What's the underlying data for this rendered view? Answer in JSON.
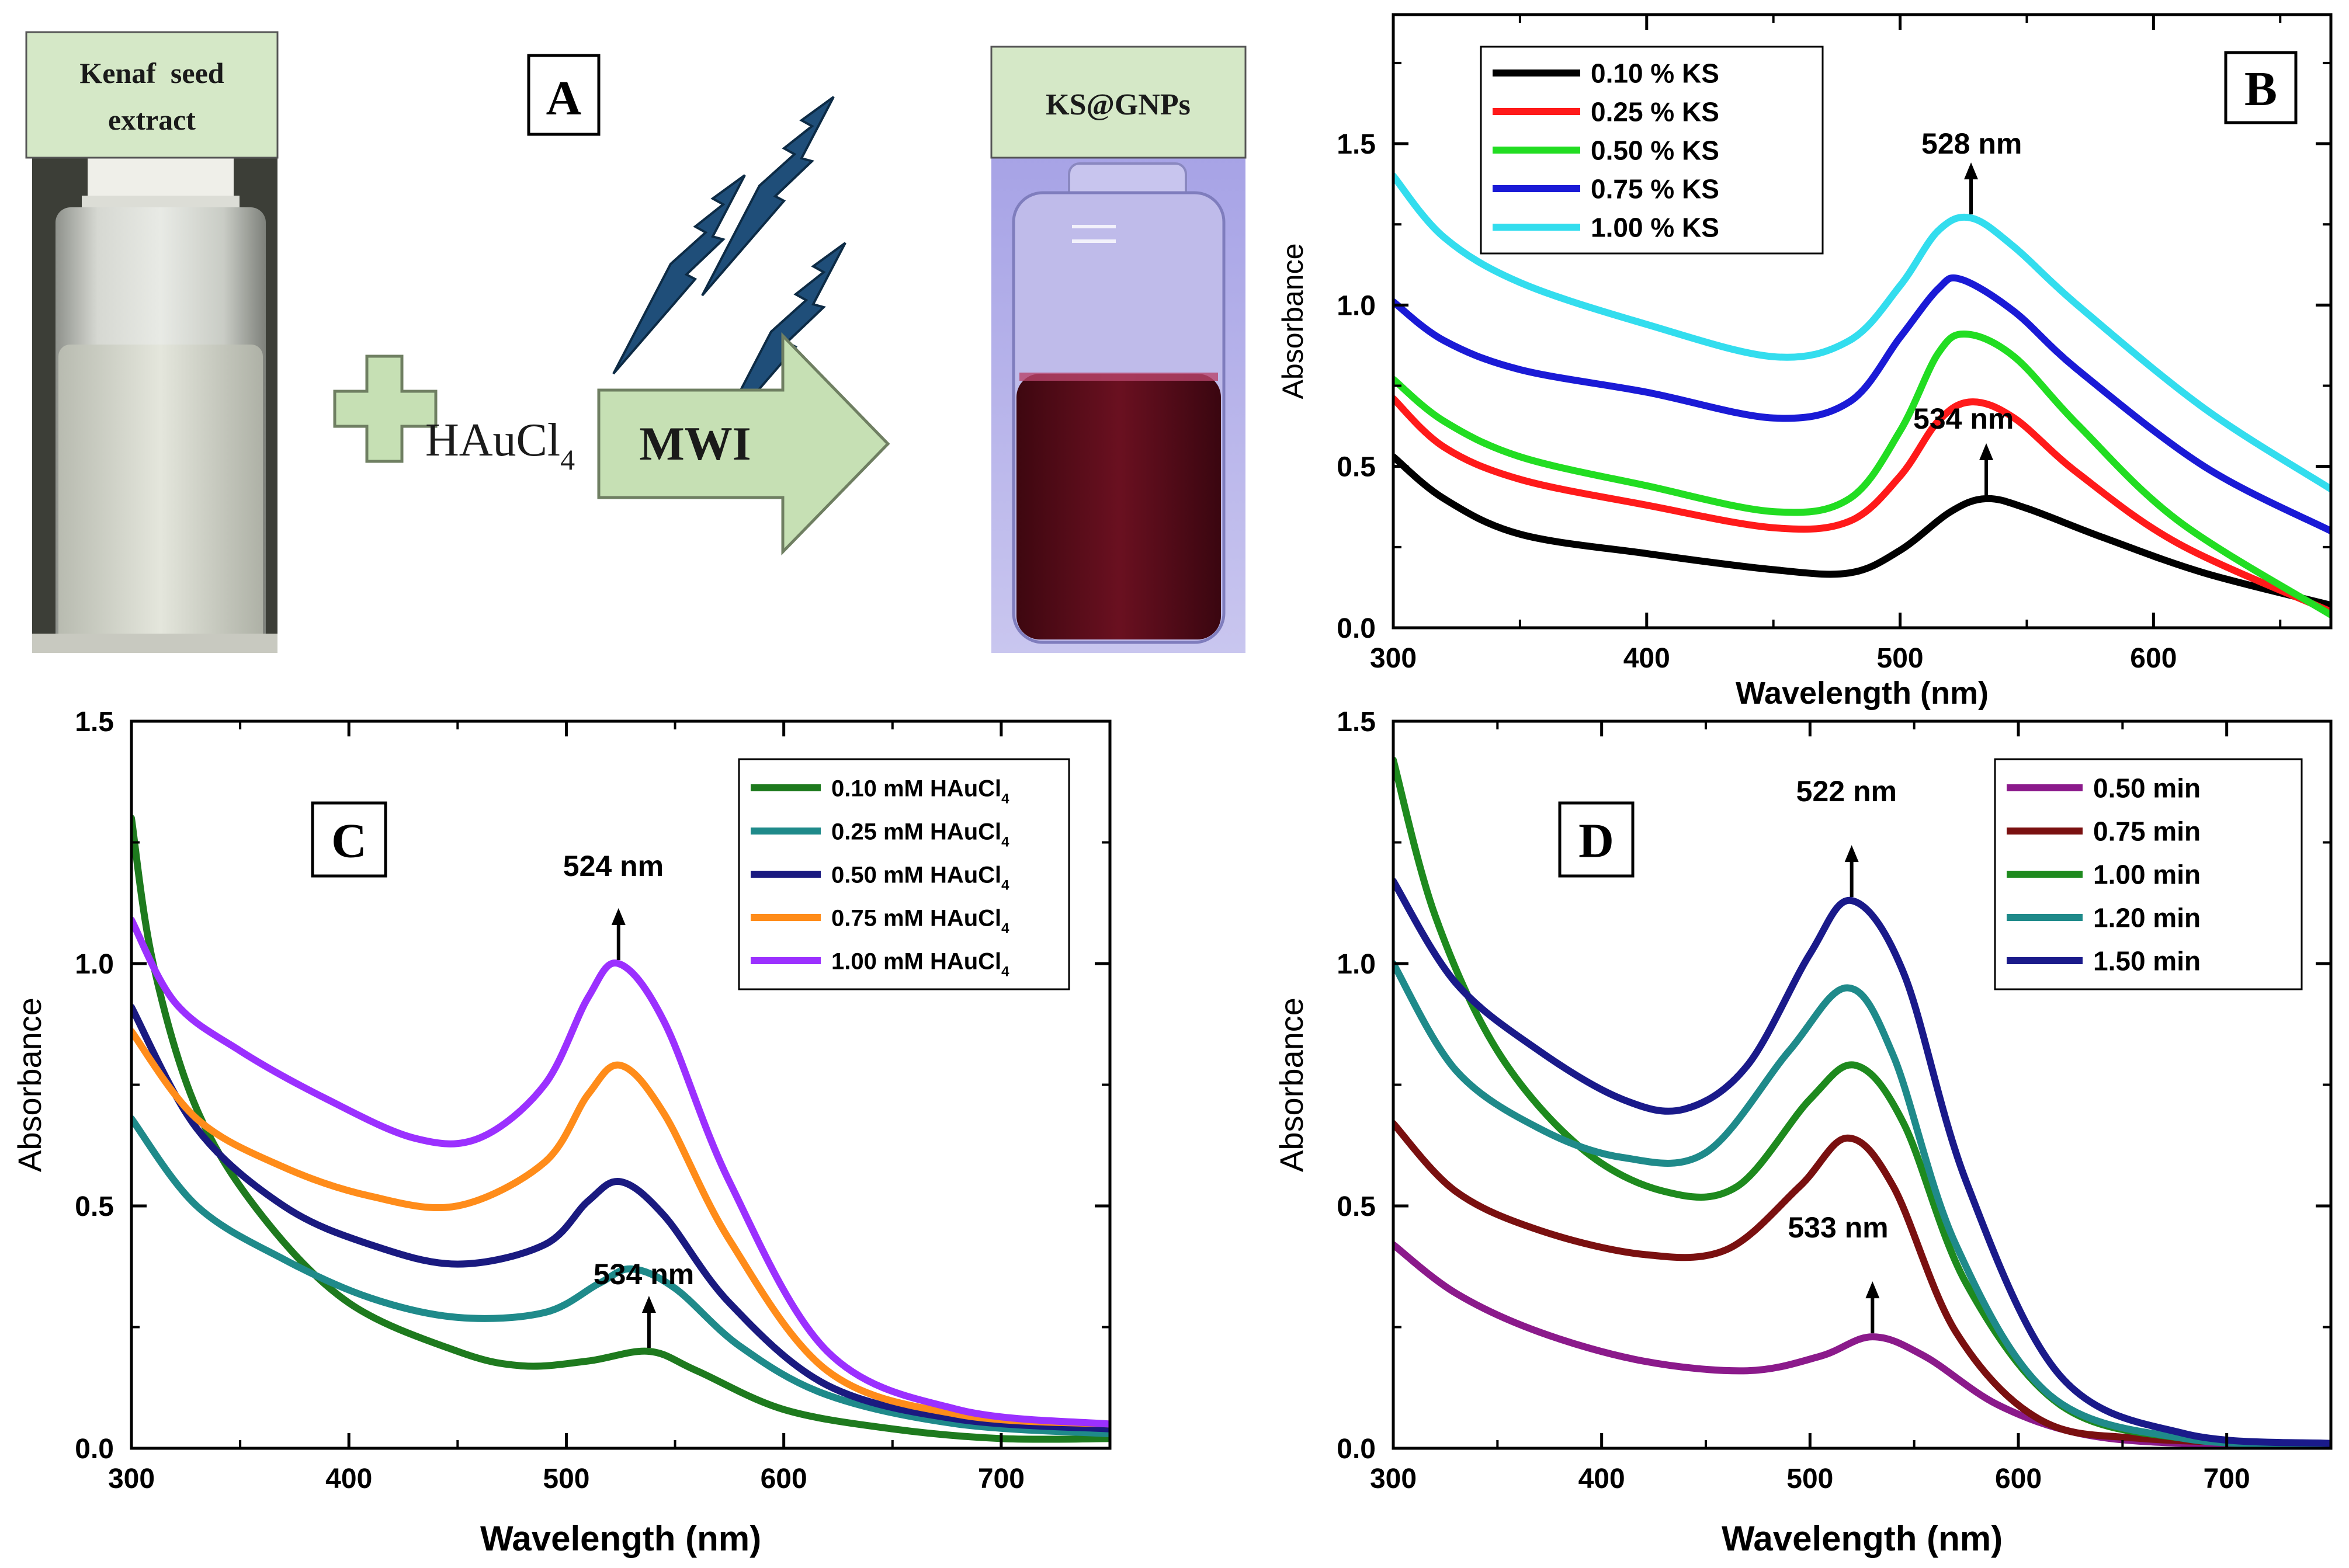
{
  "panel_a": {
    "letter": "A",
    "extract_label_line1": "Kenaf  seed",
    "extract_label_line2": "extract",
    "reagent": "HAuCl",
    "reagent_sub": "4",
    "arrow_label": "MWI",
    "product_label": "KS@GNPs",
    "colors": {
      "label_box": "#d5e8c7",
      "arrow": "#c6e0b4",
      "bolt": "#1f4e79",
      "solution": "#5a0c16"
    }
  },
  "chart_data": [
    {
      "id": "B",
      "letter": "B",
      "type": "line",
      "xlabel": "Wavelength (nm)",
      "ylabel": "Absorbance",
      "xlim": [
        300,
        670
      ],
      "ylim": [
        0,
        1.9
      ],
      "xticks": [
        300,
        400,
        500,
        600
      ],
      "yticks": [
        0.0,
        0.5,
        1.0,
        1.5
      ],
      "legend_position": "top-left",
      "series": [
        {
          "name": "0.10 % KS",
          "color": "#000000",
          "x": [
            300,
            320,
            350,
            400,
            450,
            480,
            500,
            520,
            534,
            550,
            580,
            620,
            670
          ],
          "y": [
            0.53,
            0.4,
            0.29,
            0.23,
            0.18,
            0.17,
            0.24,
            0.36,
            0.4,
            0.37,
            0.28,
            0.17,
            0.07
          ]
        },
        {
          "name": "0.25 % KS",
          "color": "#ff1a1a",
          "x": [
            300,
            320,
            350,
            400,
            450,
            480,
            500,
            515,
            528,
            545,
            570,
            610,
            670
          ],
          "y": [
            0.71,
            0.56,
            0.46,
            0.38,
            0.31,
            0.33,
            0.47,
            0.64,
            0.7,
            0.65,
            0.48,
            0.26,
            0.05
          ]
        },
        {
          "name": "0.50 % KS",
          "color": "#22dd22",
          "x": [
            300,
            320,
            350,
            400,
            450,
            480,
            500,
            515,
            526,
            545,
            570,
            610,
            670
          ],
          "y": [
            0.77,
            0.64,
            0.53,
            0.44,
            0.36,
            0.4,
            0.61,
            0.85,
            0.91,
            0.84,
            0.63,
            0.33,
            0.04
          ]
        },
        {
          "name": "0.75 % KS",
          "color": "#1a1ad6",
          "x": [
            300,
            320,
            350,
            400,
            450,
            480,
            500,
            515,
            524,
            545,
            570,
            620,
            670
          ],
          "y": [
            1.01,
            0.89,
            0.8,
            0.73,
            0.65,
            0.7,
            0.9,
            1.05,
            1.08,
            0.98,
            0.8,
            0.5,
            0.3
          ]
        },
        {
          "name": "1.00 % KS",
          "color": "#33ddee",
          "x": [
            300,
            320,
            350,
            400,
            450,
            480,
            500,
            515,
            528,
            545,
            570,
            620,
            670
          ],
          "y": [
            1.4,
            1.21,
            1.07,
            0.94,
            0.84,
            0.89,
            1.06,
            1.23,
            1.27,
            1.18,
            1.0,
            0.68,
            0.43
          ]
        }
      ],
      "annotations": [
        {
          "label": "528 nm",
          "x": 528,
          "y": 1.27,
          "text_dx": -85,
          "text_dy": -90
        },
        {
          "label": "534 nm",
          "x": 534,
          "y": 0.4,
          "text_dx": -125,
          "text_dy": -100
        }
      ]
    },
    {
      "id": "C",
      "letter": "C",
      "type": "line",
      "xlabel": "Wavelength (nm)",
      "ylabel": "Absorbance",
      "xlim": [
        300,
        750
      ],
      "ylim": [
        0,
        1.5
      ],
      "xticks": [
        300,
        400,
        500,
        600,
        700
      ],
      "yticks": [
        0.0,
        0.5,
        1.0,
        1.5
      ],
      "legend_position": "top-right",
      "series": [
        {
          "name": "0.10 mM HAuCl",
          "name_sub": "4",
          "color": "#1e7a1e",
          "x": [
            300,
            310,
            330,
            360,
            400,
            450,
            480,
            510,
            538,
            560,
            600,
            650,
            700,
            750
          ],
          "y": [
            1.3,
            1.0,
            0.7,
            0.48,
            0.3,
            0.2,
            0.17,
            0.18,
            0.2,
            0.16,
            0.08,
            0.04,
            0.02,
            0.02
          ]
        },
        {
          "name": "0.25 mM HAuCl",
          "name_sub": "4",
          "color": "#1f8a8a",
          "x": [
            300,
            330,
            370,
            410,
            450,
            490,
            515,
            530,
            550,
            580,
            620,
            680,
            750
          ],
          "y": [
            0.68,
            0.5,
            0.39,
            0.31,
            0.27,
            0.28,
            0.34,
            0.37,
            0.33,
            0.21,
            0.11,
            0.05,
            0.03
          ]
        },
        {
          "name": "0.50 mM HAuCl",
          "name_sub": "4",
          "color": "#1a1a80",
          "x": [
            300,
            330,
            370,
            410,
            450,
            490,
            510,
            525,
            545,
            575,
            620,
            680,
            750
          ],
          "y": [
            0.91,
            0.66,
            0.5,
            0.42,
            0.38,
            0.42,
            0.51,
            0.55,
            0.48,
            0.3,
            0.13,
            0.06,
            0.04
          ]
        },
        {
          "name": "0.75 mM HAuCl",
          "name_sub": "4",
          "color": "#ff8c1a",
          "x": [
            300,
            330,
            370,
            410,
            450,
            490,
            510,
            525,
            545,
            575,
            620,
            680,
            750
          ],
          "y": [
            0.86,
            0.68,
            0.58,
            0.52,
            0.5,
            0.59,
            0.73,
            0.79,
            0.69,
            0.43,
            0.16,
            0.07,
            0.05
          ]
        },
        {
          "name": "1.00 mM HAuCl",
          "name_sub": "4",
          "color": "#9b30ff",
          "x": [
            300,
            320,
            350,
            390,
            430,
            460,
            490,
            510,
            524,
            545,
            575,
            620,
            680,
            750
          ],
          "y": [
            1.09,
            0.92,
            0.82,
            0.72,
            0.64,
            0.64,
            0.75,
            0.93,
            1.0,
            0.88,
            0.55,
            0.2,
            0.08,
            0.05
          ]
        }
      ],
      "annotations": [
        {
          "label": "524 nm",
          "x": 524,
          "y": 1.0,
          "text_dx": -95,
          "text_dy": -130
        },
        {
          "label": "534 nm",
          "x": 538,
          "y": 0.2,
          "text_dx": -95,
          "text_dy": -95
        }
      ]
    },
    {
      "id": "D",
      "letter": "D",
      "type": "line",
      "xlabel": "Wavelength (nm)",
      "ylabel": "Absorbance",
      "xlim": [
        300,
        750
      ],
      "ylim": [
        0,
        1.5
      ],
      "xticks": [
        300,
        400,
        500,
        600,
        700
      ],
      "yticks": [
        0.0,
        0.5,
        1.0,
        1.5
      ],
      "legend_position": "top-right",
      "series": [
        {
          "name": "0.50 min",
          "color": "#8b1a8b",
          "x": [
            300,
            330,
            370,
            420,
            470,
            505,
            530,
            555,
            590,
            630,
            680,
            750
          ],
          "y": [
            0.42,
            0.32,
            0.24,
            0.18,
            0.16,
            0.19,
            0.23,
            0.19,
            0.09,
            0.03,
            0.01,
            0.01
          ]
        },
        {
          "name": "0.75 min",
          "color": "#7a1010",
          "x": [
            300,
            330,
            370,
            420,
            460,
            495,
            518,
            540,
            570,
            610,
            660,
            750
          ],
          "y": [
            0.67,
            0.53,
            0.45,
            0.4,
            0.41,
            0.54,
            0.64,
            0.54,
            0.24,
            0.06,
            0.02,
            0.01
          ]
        },
        {
          "name": "1.00 min",
          "color": "#1e8a1e",
          "x": [
            300,
            320,
            350,
            390,
            430,
            465,
            500,
            522,
            545,
            575,
            620,
            680,
            750
          ],
          "y": [
            1.42,
            1.1,
            0.82,
            0.62,
            0.53,
            0.54,
            0.72,
            0.79,
            0.67,
            0.34,
            0.09,
            0.02,
            0.01
          ]
        },
        {
          "name": "1.20 min",
          "color": "#1f8a8a",
          "x": [
            300,
            330,
            370,
            410,
            450,
            490,
            518,
            540,
            570,
            615,
            680,
            750
          ],
          "y": [
            1.0,
            0.78,
            0.66,
            0.6,
            0.61,
            0.82,
            0.95,
            0.81,
            0.42,
            0.11,
            0.02,
            0.01
          ]
        },
        {
          "name": "1.50 min",
          "color": "#1a1a8a",
          "x": [
            300,
            330,
            370,
            410,
            440,
            470,
            500,
            520,
            545,
            575,
            620,
            680,
            750
          ],
          "y": [
            1.17,
            0.96,
            0.82,
            0.72,
            0.7,
            0.79,
            1.02,
            1.13,
            0.98,
            0.55,
            0.15,
            0.03,
            0.01
          ]
        }
      ],
      "annotations": [
        {
          "label": "522 nm",
          "x": 520,
          "y": 1.13,
          "text_dx": -95,
          "text_dy": -150
        },
        {
          "label": "533 nm",
          "x": 530,
          "y": 0.23,
          "text_dx": -145,
          "text_dy": -150
        }
      ]
    }
  ]
}
